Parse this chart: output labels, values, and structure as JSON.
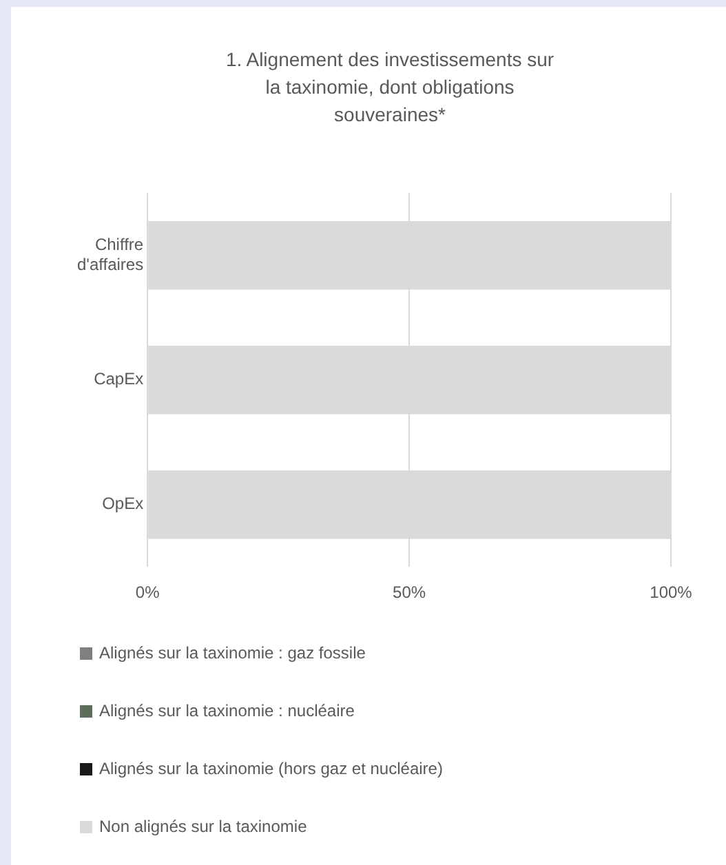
{
  "chart_data": {
    "type": "bar",
    "orientation": "horizontal",
    "stacked": true,
    "title": "1. Alignement des investissements sur la taxinomie, dont obligations souveraines*",
    "categories": [
      "Chiffre d'affaires",
      "CapEx",
      "OpEx"
    ],
    "series": [
      {
        "name": "Alignés sur la taxinomie : gaz fossile",
        "color": "#808080",
        "values": [
          0,
          0,
          0
        ]
      },
      {
        "name": "Alignés sur la taxinomie : nucléaire",
        "color": "#5e6e5e",
        "values": [
          0,
          0,
          0
        ]
      },
      {
        "name": "Alignés sur la taxinomie (hors gaz et nucléaire)",
        "color": "#1a1a1a",
        "values": [
          0,
          0,
          0
        ]
      },
      {
        "name": "Non alignés sur la taxinomie",
        "color": "#d9d9d9",
        "values": [
          100,
          100,
          100
        ]
      }
    ],
    "xlim": [
      0,
      100
    ],
    "xticks": [
      {
        "value": 0,
        "label": "0%"
      },
      {
        "value": 50,
        "label": "50%"
      },
      {
        "value": 100,
        "label": "100%"
      }
    ],
    "grid": "x",
    "legend": "bottom"
  }
}
